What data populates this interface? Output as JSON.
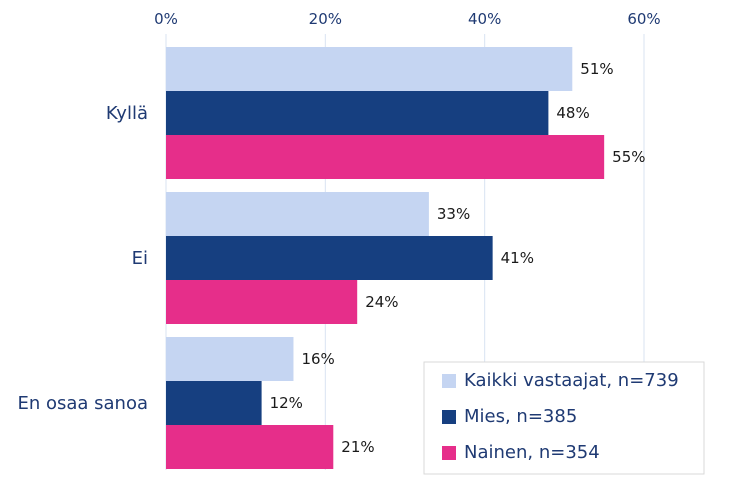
{
  "chart_data": {
    "type": "bar",
    "orientation": "horizontal",
    "categories": [
      "Kyllä",
      "Ei",
      "En osaa sanoa"
    ],
    "series": [
      {
        "name": "Kaikki vastaajat, n=739",
        "values": [
          51,
          33,
          16
        ],
        "labels": [
          "51%",
          "33%",
          "16%"
        ],
        "color": "#c5d5f2"
      },
      {
        "name": "Mies, n=385",
        "values": [
          48,
          41,
          12
        ],
        "labels": [
          "48%",
          "41%",
          "12%"
        ],
        "color": "#163f80"
      },
      {
        "name": "Nainen, n=354",
        "values": [
          55,
          24,
          21
        ],
        "labels": [
          "55%",
          "24%",
          "21%"
        ],
        "color": "#e62e8a"
      }
    ],
    "x_ticks": [
      "0%",
      "20%",
      "40%",
      "60%"
    ],
    "x_tick_values": [
      0,
      20,
      40,
      60
    ],
    "xlim": [
      0,
      60
    ],
    "xaxis_position": "top",
    "grid": "vertical",
    "legend_position": "bottom-right",
    "gridline_color": "#d9e3f2",
    "axis_text_color": "#1f3a73"
  }
}
